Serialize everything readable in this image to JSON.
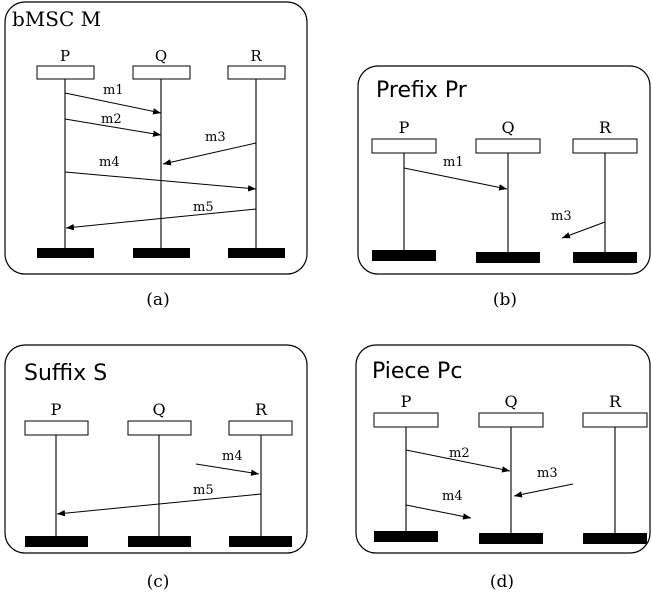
{
  "panels": [
    {
      "id": "a",
      "title": "bMSC M",
      "caption": "(a)",
      "processes": [
        "P",
        "Q",
        "R"
      ],
      "messages": [
        {
          "label": "m1",
          "from": "P",
          "to": "Q"
        },
        {
          "label": "m2",
          "from": "P",
          "to": "Q"
        },
        {
          "label": "m3",
          "from": "R",
          "to": "Q"
        },
        {
          "label": "m4",
          "from": "P",
          "to": "R"
        },
        {
          "label": "m5",
          "from": "R",
          "to": "P"
        }
      ]
    },
    {
      "id": "b",
      "title": "Prefix Pr",
      "caption": "(b)",
      "processes": [
        "P",
        "Q",
        "R"
      ],
      "messages": [
        {
          "label": "m1",
          "from": "P",
          "to": "Q"
        },
        {
          "label": "m3",
          "from": "R",
          "to": "Q"
        }
      ]
    },
    {
      "id": "c",
      "title": "Suffix S",
      "caption": "(c)",
      "processes": [
        "P",
        "Q",
        "R"
      ],
      "messages": [
        {
          "label": "m4",
          "from": "Q",
          "to": "R"
        },
        {
          "label": "m5",
          "from": "R",
          "to": "P"
        }
      ]
    },
    {
      "id": "d",
      "title": "Piece Pc",
      "caption": "(d)",
      "processes": [
        "P",
        "Q",
        "R"
      ],
      "messages": [
        {
          "label": "m2",
          "from": "P",
          "to": "Q"
        },
        {
          "label": "m3",
          "from": "R",
          "to": "Q"
        },
        {
          "label": "m4",
          "from": "P",
          "to": "Q"
        }
      ]
    }
  ]
}
